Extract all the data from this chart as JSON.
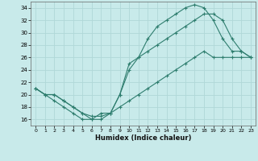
{
  "title": "",
  "xlabel": "Humidex (Indice chaleur)",
  "bg_color": "#c8eaea",
  "grid_color": "#b0d8d8",
  "line_color": "#2e7d6e",
  "xlim": [
    -0.5,
    23.5
  ],
  "ylim": [
    15.0,
    35.0
  ],
  "xticks": [
    0,
    1,
    2,
    3,
    4,
    5,
    6,
    7,
    8,
    9,
    10,
    11,
    12,
    13,
    14,
    15,
    16,
    17,
    18,
    19,
    20,
    21,
    22,
    23
  ],
  "yticks": [
    16,
    18,
    20,
    22,
    24,
    26,
    28,
    30,
    32,
    34
  ],
  "line1_x": [
    0,
    1,
    2,
    3,
    4,
    5,
    6,
    7,
    8,
    9,
    10,
    11,
    12,
    13,
    14,
    15,
    16,
    17,
    18,
    19,
    20,
    21,
    22,
    23
  ],
  "line1_y": [
    21,
    20,
    19,
    18,
    17,
    16,
    16,
    17,
    17,
    20,
    24,
    26,
    29,
    31,
    32,
    33,
    34,
    34.5,
    34,
    32,
    29,
    27,
    27,
    26
  ],
  "line2_x": [
    0,
    1,
    2,
    3,
    4,
    5,
    6,
    7,
    8,
    9,
    10,
    11,
    12,
    13,
    14,
    15,
    16,
    17,
    18,
    19,
    20,
    21,
    22,
    23
  ],
  "line2_y": [
    21,
    20,
    20,
    19,
    18,
    17,
    16,
    16,
    17,
    20,
    25,
    26,
    27,
    28,
    29,
    30,
    31,
    32,
    33,
    33,
    32,
    29,
    27,
    26
  ],
  "line3_x": [
    0,
    1,
    2,
    3,
    4,
    5,
    6,
    7,
    8,
    9,
    10,
    11,
    12,
    13,
    14,
    15,
    16,
    17,
    18,
    19,
    20,
    21,
    22,
    23
  ],
  "line3_y": [
    21,
    20,
    20,
    19,
    18,
    17,
    16.5,
    16.5,
    17,
    18,
    19,
    20,
    21,
    22,
    23,
    24,
    25,
    26,
    27,
    26,
    26,
    26,
    26,
    26
  ]
}
